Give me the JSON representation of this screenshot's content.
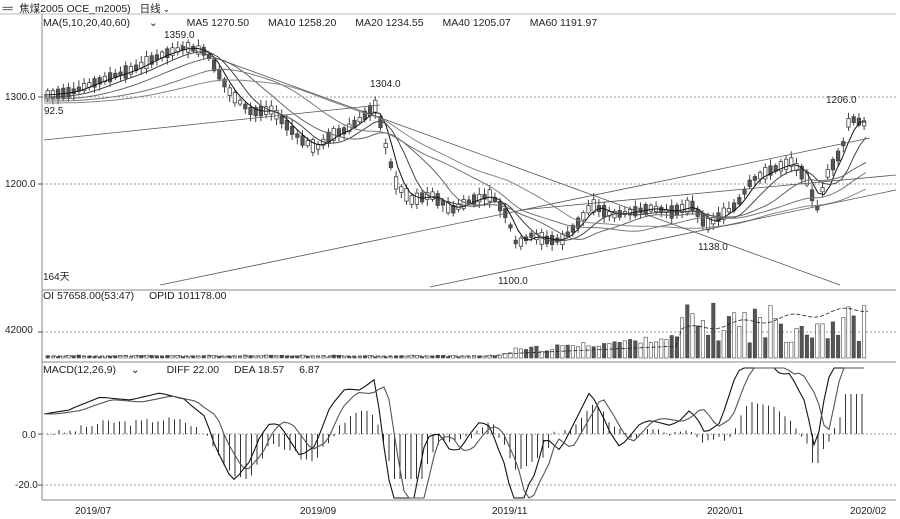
{
  "window": {
    "title": "焦煤2005 OCE_m2005)",
    "menu_icon": "menu-icon",
    "period_label": "日线"
  },
  "ma_legend": {
    "label": "MA(5,10,20,40,60)",
    "ma5": "MA5 1270.50",
    "ma10": "MA10 1258.20",
    "ma20": "MA20 1234.55",
    "ma40": "MA40 1205.07",
    "ma60": "MA60 1191.97"
  },
  "volume_legend": {
    "oi": "OI 57658.00(53:47)",
    "opid": "OPID 101178.00"
  },
  "macd_legend": {
    "label": "MACD(12,26,9)",
    "diff": "DIFF 22.00",
    "dea": "DEA 18.57",
    "macd": "6.87"
  },
  "price_axis": {
    "ticks": [
      "1300.0",
      "1200.0"
    ]
  },
  "volume_axis": {
    "ticks": [
      "42000"
    ]
  },
  "macd_axis": {
    "ticks": [
      "0.0",
      "-20.0"
    ]
  },
  "date_axis": {
    "labels": [
      "2019/07",
      "2019/09",
      "2019/11",
      "2020/01",
      "2020/02"
    ]
  },
  "annotations": {
    "high_1": "1359.0",
    "high_2": "1304.0",
    "high_3": "1206.0",
    "low_1": "1100.0",
    "low_2": "1138.0",
    "left_price": "92.5",
    "days": "164天"
  },
  "colors": {
    "up": "#ffffff",
    "down": "#555555",
    "line": "#333333",
    "grid": "#999999"
  }
}
